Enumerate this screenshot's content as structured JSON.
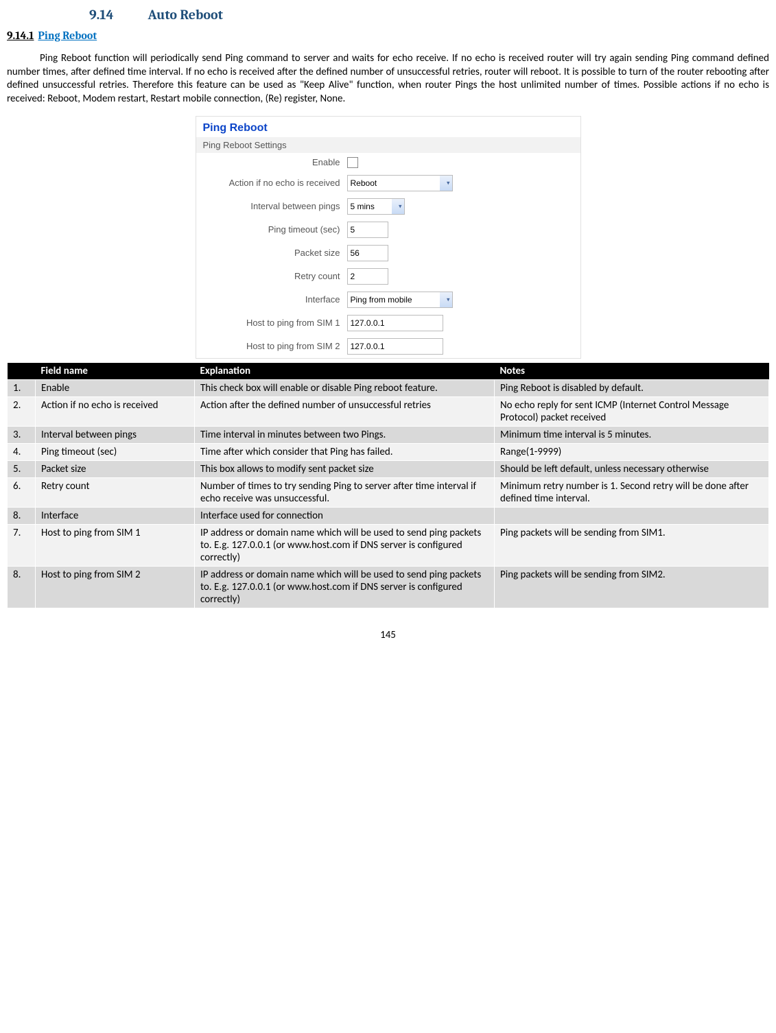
{
  "section": {
    "number": "9.14",
    "title": "Auto Reboot"
  },
  "subsection": {
    "number": "9.14.1",
    "title": "Ping Reboot"
  },
  "paragraph": "Ping Reboot function will periodically send Ping command to server and waits for echo receive. If no echo is received router will try again sending Ping command defined number times, after defined time interval. If no echo is received after the defined number of unsuccessful retries, router will reboot. It is possible to turn of the router rebooting after defined unsuccessful retries. Therefore this feature can be used as \"Keep Alive\" function, when router Pings the host unlimited number of times. Possible actions if no echo is received: Reboot, Modem restart, Restart mobile connection, (Re) register, None.",
  "panel": {
    "title": "Ping Reboot",
    "subtitle": "Ping Reboot Settings",
    "rows": {
      "enable": "Enable",
      "action": "Action if no echo is received",
      "action_value": "Reboot",
      "interval": "Interval between pings",
      "interval_value": "5 mins",
      "timeout": "Ping timeout (sec)",
      "timeout_value": "5",
      "packet": "Packet size",
      "packet_value": "56",
      "retry": "Retry count",
      "retry_value": "2",
      "iface": "Interface",
      "iface_value": "Ping from mobile",
      "host1": "Host to ping from SIM 1",
      "host1_value": "127.0.0.1",
      "host2": "Host to ping from SIM 2",
      "host2_value": "127.0.0.1"
    }
  },
  "table": {
    "headers": {
      "num": "",
      "field": "Field name",
      "exp": "Explanation",
      "notes": "Notes"
    },
    "rows": [
      {
        "num": "1.",
        "field": "Enable",
        "exp": "This check box will enable or disable Ping reboot feature.",
        "notes": "Ping Reboot is disabled by default."
      },
      {
        "num": "2.",
        "field": "Action if no echo is received",
        "exp": "Action after the defined number of unsuccessful retries",
        "notes": "No echo reply for sent ICMP (Internet Control Message Protocol) packet received"
      },
      {
        "num": "3.",
        "field": "Interval between pings",
        "exp": "Time interval in minutes between two Pings.",
        "notes": "Minimum time interval is 5 minutes."
      },
      {
        "num": "4.",
        "field": "Ping timeout (sec)",
        "exp": "Time after which consider that Ping has failed.",
        "notes": "Range(1-9999)"
      },
      {
        "num": "5.",
        "field": "Packet size",
        "exp": "This box allows to modify sent packet size",
        "notes": "Should be left default, unless necessary otherwise"
      },
      {
        "num": "6.",
        "field": "Retry count",
        "exp": "Number of times to try sending Ping to server after time interval if echo receive was unsuccessful.",
        "notes": "Minimum retry number is 1. Second retry will be done after defined time interval."
      },
      {
        "num": "8.",
        "field": "Interface",
        "exp": "Interface used for connection",
        "notes": ""
      },
      {
        "num": "7.",
        "field": "Host to ping from SIM 1",
        "exp": "IP address or domain name which will be used to send ping packets to. E.g. 127.0.0.1 (or www.host.com if DNS server is configured correctly)",
        "notes": "Ping packets will be sending from SIM1."
      },
      {
        "num": "8.",
        "field": "Host to ping from SIM 2",
        "exp": "IP address or domain name which will be used to send ping packets to. E.g. 127.0.0.1 (or www.host.com if DNS server is configured correctly)",
        "notes": "Ping packets will be sending from SIM2."
      }
    ]
  },
  "page_number": "145"
}
